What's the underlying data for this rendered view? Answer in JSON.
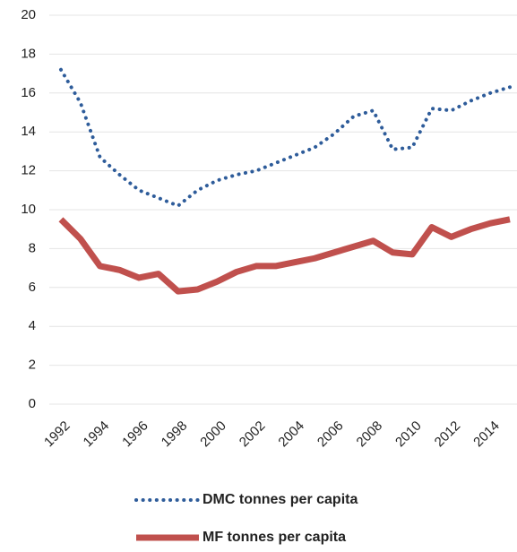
{
  "chart_data": {
    "type": "line",
    "x": [
      1992,
      1993,
      1994,
      1995,
      1996,
      1997,
      1998,
      1999,
      2000,
      2001,
      2002,
      2003,
      2004,
      2005,
      2006,
      2007,
      2008,
      2009,
      2010,
      2011,
      2012,
      2013,
      2014,
      2015
    ],
    "series": [
      {
        "name": "DMC tonnes per capita",
        "color": "#2e5c9a",
        "style": "dotted",
        "values": [
          17.2,
          15.5,
          12.7,
          11.8,
          11.0,
          10.6,
          10.2,
          11.0,
          11.5,
          11.8,
          12.0,
          12.4,
          12.8,
          13.2,
          13.9,
          14.8,
          15.1,
          13.1,
          13.2,
          15.2,
          15.1,
          15.6,
          16.0,
          16.3
        ]
      },
      {
        "name": "MF tonnes per capita",
        "color": "#c0504d",
        "style": "solid",
        "values": [
          9.5,
          8.5,
          7.1,
          6.9,
          6.5,
          6.7,
          5.8,
          5.9,
          6.3,
          6.8,
          7.1,
          7.1,
          7.3,
          7.5,
          7.8,
          8.1,
          8.4,
          7.8,
          7.7,
          9.1,
          8.6,
          9.0,
          9.3,
          9.5
        ]
      }
    ],
    "xlim": [
      1992,
      2015
    ],
    "xticks": [
      1992,
      1994,
      1996,
      1998,
      2000,
      2002,
      2004,
      2006,
      2008,
      2010,
      2012,
      2014
    ],
    "ylim": [
      0,
      20
    ],
    "yticks": [
      0,
      2,
      4,
      6,
      8,
      10,
      12,
      14,
      16,
      18,
      20
    ],
    "grid": true
  }
}
